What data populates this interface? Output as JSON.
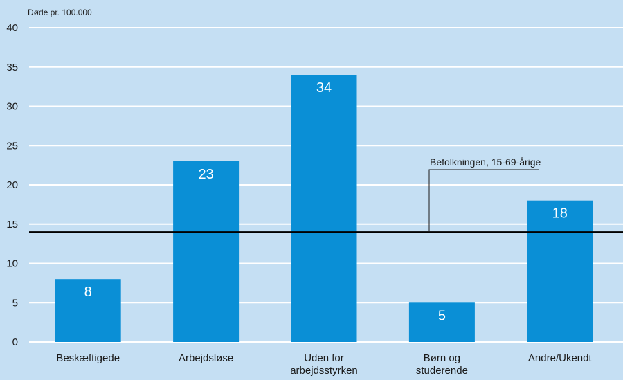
{
  "chart_data": {
    "type": "bar",
    "ylabel": "Døde pr. 100.000",
    "ylim": [
      0,
      40
    ],
    "yticks": [
      0,
      5,
      10,
      15,
      20,
      25,
      30,
      35,
      40
    ],
    "grid": true,
    "categories": [
      [
        "Beskæftigede"
      ],
      [
        "Arbejdsløse"
      ],
      [
        "Uden for",
        "arbejdsstyrken"
      ],
      [
        "Børn og",
        "studerende"
      ],
      [
        "Andre/Ukendt"
      ]
    ],
    "values": [
      8,
      23,
      34,
      5,
      18
    ],
    "data_labels": [
      "8",
      "23",
      "34",
      "5",
      "18"
    ],
    "bar_color": "#0a8fd6",
    "reference_line": {
      "value": 14,
      "label": "Befolkningen, 15-69-årige",
      "color": "#000000"
    },
    "background": "#c5dff3"
  }
}
